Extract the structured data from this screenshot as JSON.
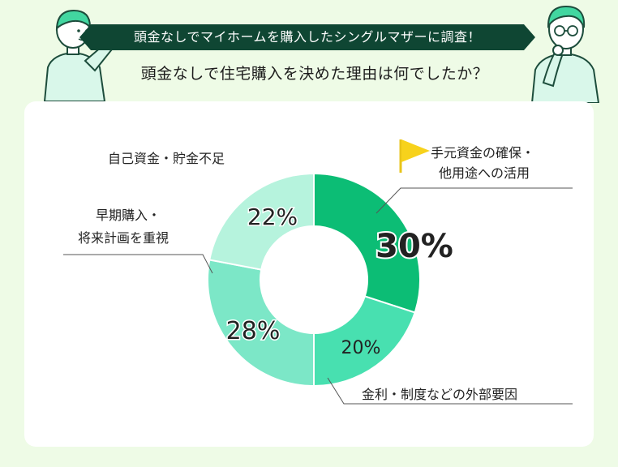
{
  "header": {
    "banner": "頭金なしでマイホームを購入したシングルマザーに調査！",
    "question": "頭金なしで住宅購入を決めた理由は何でしたか？"
  },
  "chart_data": {
    "type": "pie",
    "donut": true,
    "title": "",
    "slices": [
      {
        "label_lines": [
          "手元資金の確保・",
          "他用途への活用"
        ],
        "value": 30,
        "value_label": "30%",
        "color": "#0cbd75"
      },
      {
        "label_lines": [
          "金利・制度などの外部要因"
        ],
        "value": 20,
        "value_label": "20%",
        "color": "#48e0b0"
      },
      {
        "label_lines": [
          "早期購入・",
          "将来計画を重視"
        ],
        "value": 28,
        "value_label": "28%",
        "color": "#7ce7c7"
      },
      {
        "label_lines": [
          "自己資金・貯金不足"
        ],
        "value": 22,
        "value_label": "22%",
        "color": "#b6f3dd"
      }
    ],
    "highlight_index": 0
  },
  "colors": {
    "background": "#eefbe6",
    "banner": "#0f4633",
    "card": "#ffffff",
    "flag": "#f7d21c",
    "leader_line": "#555555"
  },
  "icons": {
    "highlight": "flag-icon",
    "left_person": "person-pointing-illustration",
    "right_person": "person-thinking-illustration"
  }
}
